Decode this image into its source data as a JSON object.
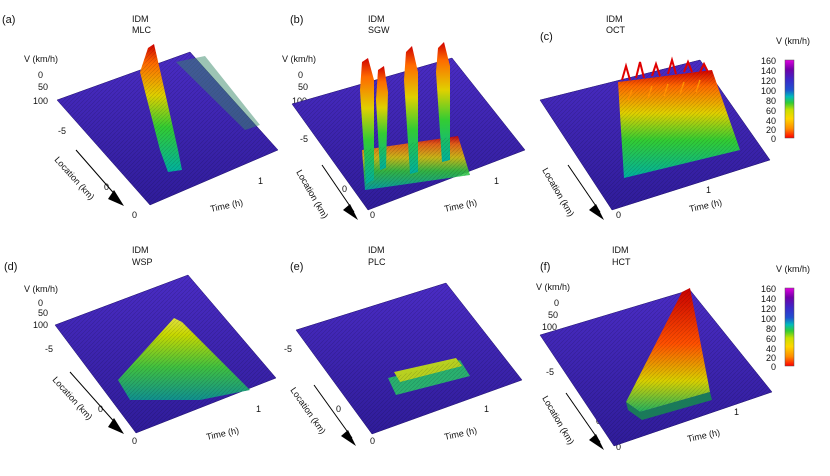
{
  "figure": {
    "colorbar_title": "V (km/h)",
    "colorbar_ticks": [
      "160",
      "140",
      "120",
      "100",
      "80",
      "60",
      "40",
      "20",
      "0"
    ],
    "colorbar_colors": [
      "#ff0000",
      "#ff8c00",
      "#ffd700",
      "#c8e000",
      "#33cc33",
      "#00bcbc",
      "#1f50d0",
      "#3c28c8",
      "#7000a8",
      "#cc00cc"
    ]
  },
  "chart_data": [
    {
      "type": "surface3d",
      "panel": "(a)",
      "title_line1": "IDM",
      "title_line2": "MLC",
      "zlabel": "V (km/h)",
      "zticks": [
        "0",
        "50",
        "100"
      ],
      "ylabel": "Location (km)",
      "yticks": [
        "-5",
        "0"
      ],
      "xlabel": "Time (h)",
      "xticks": [
        "0",
        "1"
      ],
      "zlim": [
        0,
        160
      ],
      "pattern": "Moving localized cluster: single narrow congested wave propagating upstream from the bottleneck"
    },
    {
      "type": "surface3d",
      "panel": "(b)",
      "title_line1": "IDM",
      "title_line2": "SGW",
      "zlabel": "V (km/h)",
      "zticks": [
        "0",
        "50",
        "100"
      ],
      "ylabel": "Location (km)",
      "yticks": [
        "-5",
        "0"
      ],
      "xlabel": "Time (h)",
      "xticks": [
        "0",
        "1"
      ],
      "zlim": [
        0,
        160
      ],
      "pattern": "Stop-and-go waves: several separate moving jams propagating upstream"
    },
    {
      "type": "surface3d",
      "panel": "(c)",
      "title_line1": "IDM",
      "title_line2": "OCT",
      "zlabel": "",
      "zticks": [],
      "ylabel": "Location (km)",
      "yticks": [],
      "xlabel": "Time (h)",
      "xticks": [
        "0",
        "1"
      ],
      "zlim": [
        0,
        160
      ],
      "pattern": "Oscillating congested traffic: many dense oscillations inside an extended congested region"
    },
    {
      "type": "surface3d",
      "panel": "(d)",
      "title_line1": "IDM",
      "title_line2": "WSP",
      "zlabel": "V (km/h)",
      "zticks": [
        "0",
        "50",
        "100"
      ],
      "ylabel": "Location (km)",
      "yticks": [
        "-5",
        "0"
      ],
      "xlabel": "Time (h)",
      "xticks": [
        "0",
        "1"
      ],
      "zlim": [
        0,
        160
      ],
      "pattern": "Widening synchronized pattern: congested region widening upstream with moderately reduced speeds"
    },
    {
      "type": "surface3d",
      "panel": "(e)",
      "title_line1": "IDM",
      "title_line2": "PLC",
      "zlabel": "",
      "zticks": [],
      "ylabel": "Location (km)",
      "yticks": [
        "-5",
        "0"
      ],
      "xlabel": "Time (h)",
      "xticks": [
        "0",
        "1"
      ],
      "zlim": [
        0,
        160
      ],
      "pattern": "Pinned localized cluster: small congestion pinned at the bottleneck location"
    },
    {
      "type": "surface3d",
      "panel": "(f)",
      "title_line1": "IDM",
      "title_line2": "HCT",
      "zlabel": "V (km/h)",
      "zticks": [
        "0",
        "50",
        "100"
      ],
      "ylabel": "Location (km)",
      "yticks": [
        "-5",
        "0"
      ],
      "xlabel": "Time (h)",
      "xticks": [
        "0",
        "1"
      ],
      "zlim": [
        0,
        160
      ],
      "pattern": "Homogeneous congested traffic: wide triangular region of strongly reduced speed"
    }
  ]
}
